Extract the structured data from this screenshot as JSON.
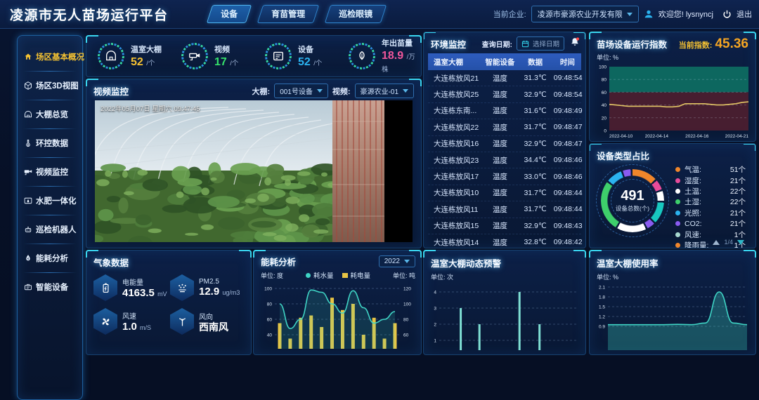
{
  "header": {
    "title": "凌源市无人苗场运行平台",
    "nav": [
      {
        "label": "设备",
        "active": true
      },
      {
        "label": "育苗管理",
        "active": false
      },
      {
        "label": "巡检眼镜",
        "active": false
      }
    ],
    "company_label": "当前企业:",
    "company_value": "凌源市豪源农业开发有限",
    "welcome": "欢迎您! lysnyncj",
    "logout": "退出"
  },
  "sidebar": {
    "items": [
      {
        "label": "场区基本概况",
        "icon": "home-icon",
        "active": true
      },
      {
        "label": "场区3D视图",
        "icon": "cube-icon",
        "active": false
      },
      {
        "label": "大棚总览",
        "icon": "greenhouse-icon",
        "active": false
      },
      {
        "label": "环控数据",
        "icon": "climate-icon",
        "active": false
      },
      {
        "label": "视频监控",
        "icon": "camera-icon",
        "active": false
      },
      {
        "label": "水肥一体化",
        "icon": "irrigation-icon",
        "active": false
      },
      {
        "label": "巡检机器人",
        "icon": "robot-icon",
        "active": false
      },
      {
        "label": "能耗分析",
        "icon": "energy-icon",
        "active": false
      },
      {
        "label": "智能设备",
        "icon": "smart-device-icon",
        "active": false
      }
    ]
  },
  "stats": [
    {
      "label": "温室大棚",
      "value": "52",
      "unit": "/个",
      "color": "#f5c232",
      "icon": "greenhouse-icon"
    },
    {
      "label": "视频",
      "value": "17",
      "unit": "/个",
      "color": "#35e06b",
      "icon": "cctv-icon"
    },
    {
      "label": "设备",
      "value": "52",
      "unit": "/个",
      "color": "#2bb3f0",
      "icon": "device-list-icon"
    },
    {
      "label": "年出苗量",
      "value": "18.9",
      "unit": "/万株",
      "color": "#f0569b",
      "icon": "seedling-icon"
    }
  ],
  "video_panel": {
    "title": "视频监控",
    "greenhouse_label": "大棚:",
    "greenhouse_value": "001号设备",
    "video_label": "视频:",
    "video_value": "豪源农业-01",
    "overlay_datetime": "2022年05月07日 星期六 09:47:45"
  },
  "env_panel": {
    "title": "环境监控",
    "date_label": "查询日期:",
    "date_placeholder": "选择日期",
    "columns": [
      "温室大棚",
      "智能设备",
      "数据",
      "时间"
    ],
    "rows": [
      [
        "大连栋放风21",
        "温度",
        "31.3℃",
        "09:48:54"
      ],
      [
        "大连栋放风25",
        "温度",
        "32.9℃",
        "09:48:54"
      ],
      [
        "大连栋东南...",
        "温度",
        "31.6℃",
        "09:48:49"
      ],
      [
        "大连栋放风22",
        "温度",
        "31.7℃",
        "09:48:47"
      ],
      [
        "大连栋放风16",
        "温度",
        "32.9℃",
        "09:48:47"
      ],
      [
        "大连栋放风23",
        "温度",
        "34.4℃",
        "09:48:46"
      ],
      [
        "大连栋放风17",
        "温度",
        "33.0℃",
        "09:48:46"
      ],
      [
        "大连栋放风10",
        "温度",
        "31.7℃",
        "09:48:44"
      ],
      [
        "大连栋放风11",
        "温度",
        "31.7℃",
        "09:48:44"
      ],
      [
        "大连栋放风15",
        "温度",
        "32.9℃",
        "09:48:43"
      ],
      [
        "大连栋放风14",
        "温度",
        "32.8℃",
        "09:48:42"
      ]
    ]
  },
  "weather_panel": {
    "title": "气象数据",
    "items": [
      {
        "label": "电能量",
        "value": "4163.5",
        "unit": "mV",
        "icon": "battery-icon"
      },
      {
        "label": "PM2.5",
        "value": "12.9",
        "unit": "ug/m3",
        "icon": "pm25-icon"
      },
      {
        "label": "风速",
        "value": "1.0",
        "unit": "m/S",
        "icon": "fan-icon"
      },
      {
        "label": "风向",
        "value": "西南风",
        "unit": "",
        "icon": "wind-direction-icon"
      }
    ]
  },
  "device_panel": {
    "title": "设备类型占比",
    "total": "491",
    "total_label": "设备总数(个)",
    "legend": [
      {
        "name": "气温:",
        "count": "51个",
        "color": "#f0862b"
      },
      {
        "name": "湿度:",
        "count": "21个",
        "color": "#e84b9a"
      },
      {
        "name": "土温:",
        "count": "22个",
        "color": "#ffffff"
      },
      {
        "name": "土湿:",
        "count": "22个",
        "color": "#3ecf6b"
      },
      {
        "name": "光照:",
        "count": "21个",
        "color": "#2bb3f0"
      },
      {
        "name": "CO2:",
        "count": "21个",
        "color": "#8a5bf0"
      },
      {
        "name": "风速:",
        "count": "1个",
        "color": "#a8d8d0"
      },
      {
        "name": "降雨量:",
        "count": "1个",
        "color": "#f0862b"
      }
    ],
    "pagination": "1/4",
    "ring": [
      {
        "color": "#f0862b",
        "pct": 13
      },
      {
        "color": "#0b1c3c",
        "pct": 1
      },
      {
        "color": "#e84b9a",
        "pct": 5
      },
      {
        "color": "#0b1c3c",
        "pct": 1
      },
      {
        "color": "#ffffff",
        "pct": 5
      },
      {
        "color": "#0b1c3c",
        "pct": 1
      },
      {
        "color": "#18c8c0",
        "pct": 11
      },
      {
        "color": "#0b1c3c",
        "pct": 1
      },
      {
        "color": "#8a5bf0",
        "pct": 4
      },
      {
        "color": "#0b1c3c",
        "pct": 1
      },
      {
        "color": "#ffffff",
        "pct": 15
      },
      {
        "color": "#0b1c3c",
        "pct": 1
      },
      {
        "color": "#3ecf6b",
        "pct": 26
      },
      {
        "color": "#0b1c3c",
        "pct": 1
      },
      {
        "color": "#2bb3f0",
        "pct": 8
      },
      {
        "color": "#0b1c3c",
        "pct": 1
      },
      {
        "color": "#8a5bf0",
        "pct": 4
      },
      {
        "color": "#0b1c3c",
        "pct": 1
      }
    ]
  },
  "chart_data": [
    {
      "id": "index-chart",
      "type": "line",
      "title": "苗场设备运行指数",
      "current_label": "当前指数:",
      "current_value": "45.36",
      "unit_label": "单位: %",
      "x_ticks": [
        "2022-04-10",
        "2022-04-14",
        "2022-04-16",
        "2022-04-21"
      ],
      "y_ticks": [
        0,
        20,
        40,
        60,
        80,
        100
      ],
      "ylim": [
        0,
        100
      ],
      "bands": [
        {
          "from": 60,
          "to": 100,
          "color": "#0e6e62"
        },
        {
          "from": 0,
          "to": 60,
          "color": "#4d1e30"
        }
      ],
      "line_color": "#e3c565",
      "values": [
        41,
        40,
        39,
        38,
        38,
        38,
        38,
        38,
        38,
        37,
        37,
        38,
        42,
        42,
        42,
        42,
        41,
        40,
        40,
        41,
        42,
        44,
        45
      ]
    },
    {
      "id": "energy-chart",
      "type": "combo",
      "title": "能耗分析",
      "year": "2022",
      "unit_left": "单位: 度",
      "unit_right": "单位: 吨",
      "legend": [
        {
          "name": "耗水量",
          "color": "#3fd4c5",
          "kind": "line"
        },
        {
          "name": "耗电量",
          "color": "#e8c545",
          "kind": "bar"
        }
      ],
      "y_ticks_left": [
        40,
        60,
        80,
        100
      ],
      "y_ticks_right": [
        60,
        80,
        100,
        120
      ],
      "ylim_left": [
        0,
        100
      ],
      "bars": [
        55,
        35,
        62,
        65,
        50,
        88,
        72,
        80,
        40,
        62,
        35,
        55
      ],
      "line": [
        80,
        48,
        60,
        98,
        95,
        80,
        68,
        97,
        75,
        55,
        60,
        70
      ]
    },
    {
      "id": "warning-chart",
      "type": "bar",
      "title": "温室大棚动态预警",
      "unit_label": "单位: 次",
      "y_ticks": [
        1,
        2,
        3,
        4
      ],
      "ylim": [
        0,
        4.5
      ],
      "bar_color": "#7fe0d4",
      "values": [
        {
          "x": 0.14,
          "v": 3
        },
        {
          "x": 0.28,
          "v": 2
        },
        {
          "x": 0.58,
          "v": 4
        },
        {
          "x": 0.73,
          "v": 2
        }
      ]
    },
    {
      "id": "usage-chart",
      "type": "area",
      "title": "温室大棚使用率",
      "unit_label": "单位: %",
      "y_ticks": [
        0.9,
        1.2,
        1.5,
        1.8,
        2.1
      ],
      "ylim": [
        0.9,
        2.2
      ],
      "line_color": "#3fd4c5",
      "values": [
        0.95,
        0.95,
        0.95,
        0.95,
        0.95,
        0.96,
        0.95,
        1.0,
        1.95,
        1.0,
        0.95
      ]
    }
  ]
}
